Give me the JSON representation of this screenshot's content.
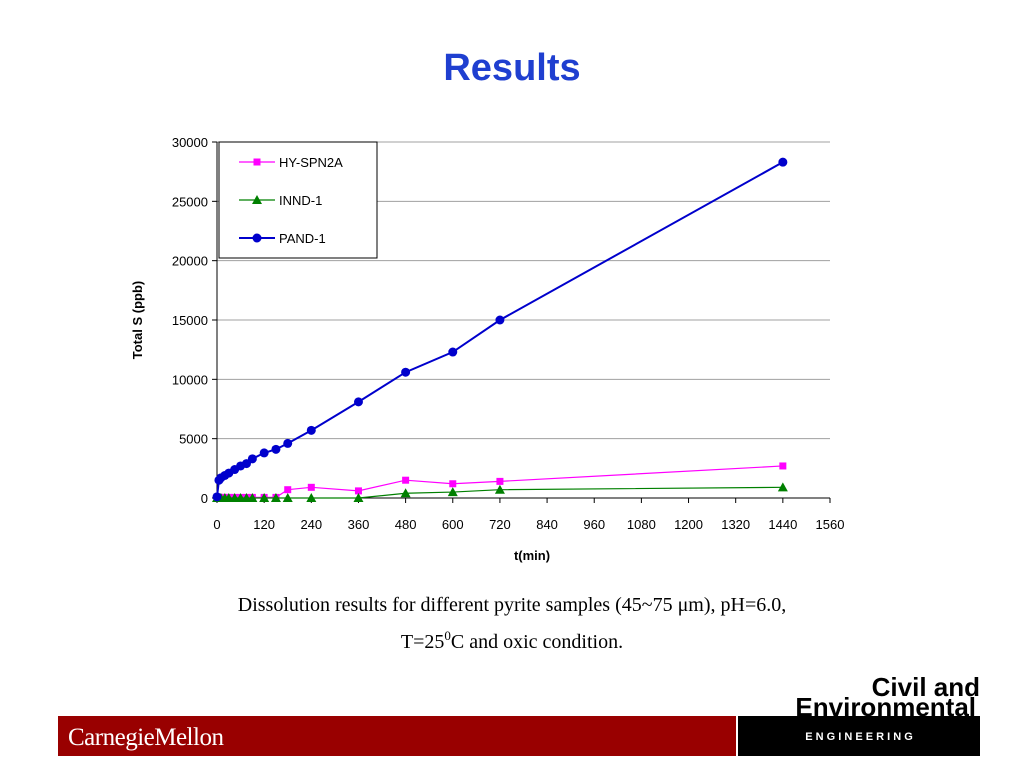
{
  "title": "Results",
  "chart_data": {
    "type": "line",
    "xlabel": "t(min)",
    "ylabel": "Total S (ppb)",
    "x": [
      0,
      5,
      10,
      20,
      30,
      45,
      60,
      75,
      90,
      120,
      150,
      180,
      240,
      360,
      480,
      600,
      720,
      1440
    ],
    "series": [
      {
        "name": "HY-SPN2A",
        "color": "#ff00ff",
        "marker": "square",
        "values": [
          50,
          50,
          50,
          50,
          50,
          50,
          50,
          50,
          50,
          50,
          50,
          700,
          900,
          600,
          1500,
          1200,
          1400,
          2700
        ]
      },
      {
        "name": "INND-1",
        "color": "#008000",
        "marker": "triangle",
        "values": [
          0,
          0,
          0,
          0,
          0,
          0,
          0,
          0,
          0,
          0,
          0,
          0,
          0,
          0,
          400,
          500,
          700,
          900
        ]
      },
      {
        "name": "PAND-1",
        "color": "#0000cc",
        "marker": "circle",
        "values": [
          100,
          1500,
          1700,
          1900,
          2100,
          2400,
          2700,
          2900,
          3300,
          3800,
          4100,
          4600,
          5700,
          8100,
          10600,
          12300,
          15000,
          28300
        ]
      }
    ],
    "xlim": [
      0,
      1560
    ],
    "xticks": [
      0,
      120,
      240,
      360,
      480,
      600,
      720,
      840,
      960,
      1080,
      1200,
      1320,
      1440,
      1560
    ],
    "ylim": [
      0,
      30000
    ],
    "yticks": [
      0,
      5000,
      10000,
      15000,
      20000,
      25000,
      30000
    ],
    "grid": true,
    "legend": "upper-left"
  },
  "caption": {
    "line1": "Dissolution results for different pyrite samples (45~75 μm), pH=6.0,",
    "line2": {
      "before": "T=25",
      "sup": "0",
      "after": "C and oxic condition."
    }
  },
  "footer": {
    "university": "CarnegieMellon",
    "logo": {
      "line1": "Civil and",
      "line2": "Environmental",
      "line3": "E N G I N E E R I N G"
    }
  }
}
